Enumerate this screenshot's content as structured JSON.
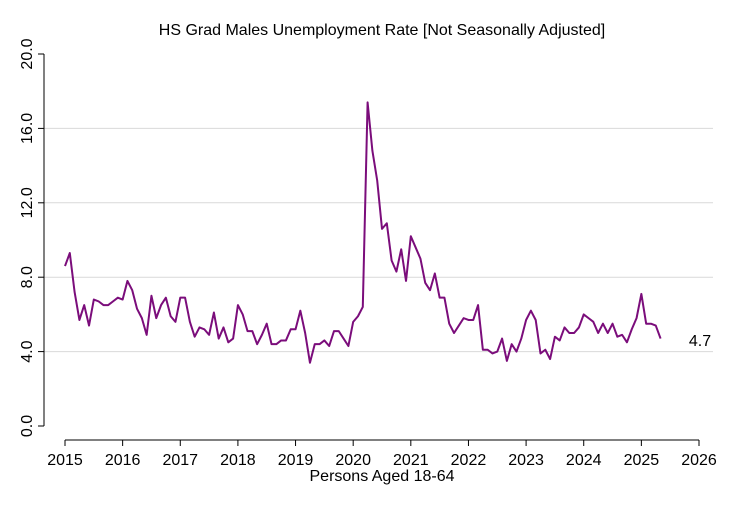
{
  "chart_data": {
    "type": "line",
    "title": "HS Grad Males Unemployment Rate [Not Seasonally Adjusted]",
    "xlabel": "Persons Aged 18-64",
    "ylabel": "",
    "xlim": [
      2015,
      2026
    ],
    "ylim": [
      0,
      20
    ],
    "x_ticks": [
      2015,
      2016,
      2017,
      2018,
      2019,
      2020,
      2021,
      2022,
      2023,
      2024,
      2025,
      2026
    ],
    "x_tick_labels": [
      "2015",
      "2016",
      "2017",
      "2018",
      "2019",
      "2020",
      "2021",
      "2022",
      "2023",
      "2024",
      "2025",
      "2026"
    ],
    "y_ticks": [
      0,
      4,
      8,
      12,
      16,
      20
    ],
    "y_tick_labels": [
      "0.0",
      "4.0",
      "8.0",
      "12.0",
      "16.0",
      "20.0"
    ],
    "grid": "horizontal",
    "legend": "none",
    "line_color": "#7b0d7b",
    "grid_color": "#d9d9d9",
    "last_value_label": "4.7",
    "series": [
      {
        "start": "2015-01",
        "frequency": "monthly",
        "values": [
          8.6,
          9.3,
          7.2,
          5.7,
          6.5,
          5.4,
          6.8,
          6.7,
          6.5,
          6.5,
          6.7,
          6.9,
          6.8,
          7.8,
          7.3,
          6.3,
          5.8,
          4.9,
          7.0,
          5.8,
          6.5,
          6.9,
          5.9,
          5.6,
          6.9,
          6.9,
          5.6,
          4.8,
          5.3,
          5.2,
          4.9,
          6.1,
          4.7,
          5.3,
          4.5,
          4.7,
          6.5,
          6.0,
          5.1,
          5.1,
          4.4,
          4.9,
          5.5,
          4.4,
          4.4,
          4.6,
          4.6,
          5.2,
          5.2,
          6.2,
          5.0,
          3.4,
          4.4,
          4.4,
          4.6,
          4.3,
          5.1,
          5.1,
          4.7,
          4.3,
          5.6,
          5.9,
          6.4,
          17.4,
          14.8,
          13.2,
          10.6,
          10.9,
          8.9,
          8.3,
          9.5,
          7.8,
          10.2,
          9.6,
          9.0,
          7.7,
          7.3,
          8.2,
          6.9,
          6.9,
          5.5,
          5.0,
          5.4,
          5.8,
          5.7,
          5.7,
          6.5,
          4.1,
          4.1,
          3.9,
          4.0,
          4.7,
          3.5,
          4.4,
          4.0,
          4.7,
          5.7,
          6.2,
          5.7,
          3.9,
          4.1,
          3.6,
          4.8,
          4.6,
          5.3,
          5.0,
          5.0,
          5.3,
          6.0,
          5.8,
          5.6,
          5.0,
          5.5,
          5.0,
          5.5,
          4.8,
          4.9,
          4.5,
          5.2,
          5.8,
          7.1,
          5.5,
          5.5,
          5.4,
          4.7
        ]
      }
    ]
  }
}
